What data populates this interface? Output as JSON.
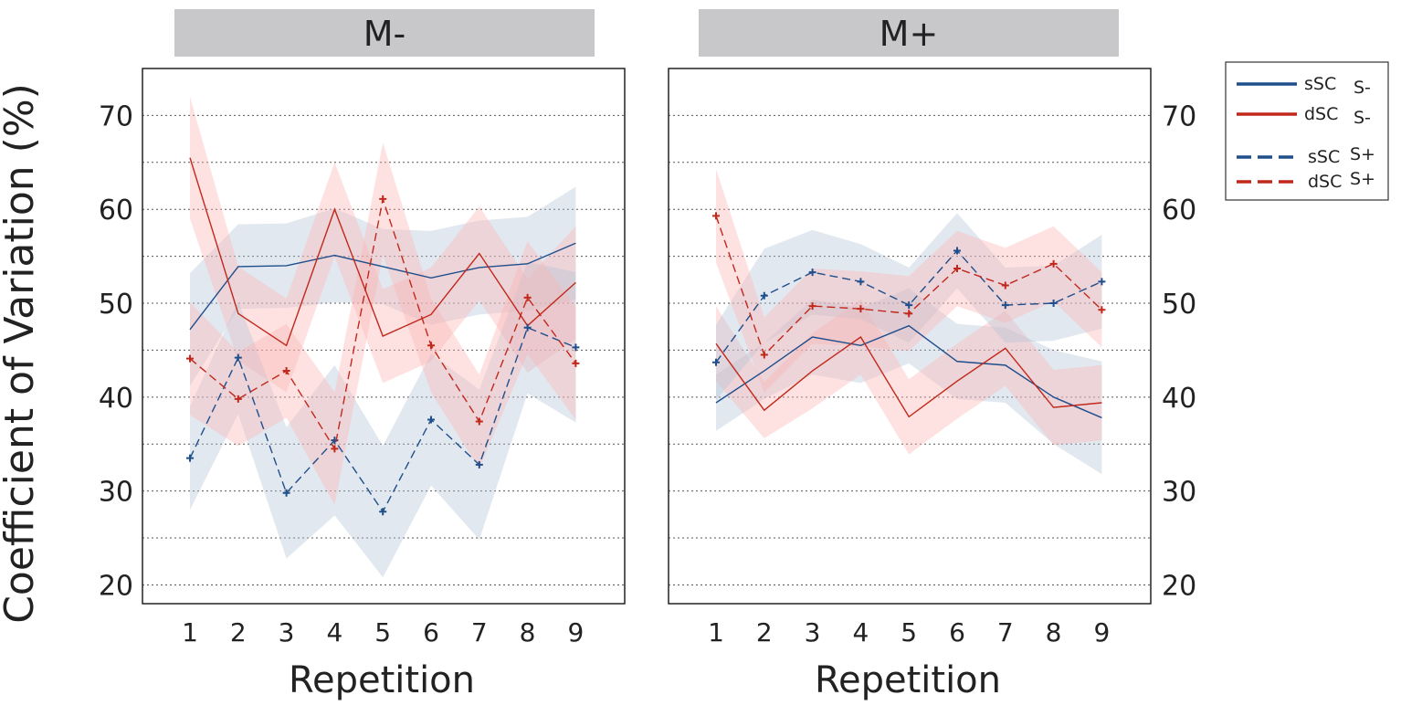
{
  "chart_data": {
    "type": "line",
    "ylabel": "Coefficient of Variation (%)",
    "xlabel": "Repetition",
    "x": [
      1,
      2,
      3,
      4,
      5,
      6,
      7,
      8,
      9
    ],
    "ylim": [
      18,
      75
    ],
    "yticks": [
      20,
      30,
      40,
      50,
      60,
      70
    ],
    "grid": true,
    "colors": {
      "blue": "#1f4e8c",
      "red": "#c0281b",
      "blue_band": "#b4c3d6",
      "red_band": "#fcb4b4",
      "title_bar": "#c8c8cb"
    },
    "legend": {
      "position": "right",
      "entries": [
        {
          "name": "sSC",
          "cond": "S-",
          "color": "#1f4e8c",
          "dash": false
        },
        {
          "name": "dSC",
          "cond": "S-",
          "color": "#c0281b",
          "dash": false
        },
        {
          "name": "sSC",
          "cond": "S+",
          "color": "#1f4e8c",
          "dash": true
        },
        {
          "name": "dSC",
          "cond": "S+",
          "color": "#c0281b",
          "dash": true
        }
      ]
    },
    "panels": [
      {
        "title": "M-",
        "series": [
          {
            "name": "sSC S-",
            "color": "#1f4e8c",
            "dashed": false,
            "markers": false,
            "values": [
              47.2,
              53.9,
              54.0,
              55.1,
              53.9,
              52.7,
              53.8,
              54.2,
              56.4
            ],
            "band": [
              6,
              4.5,
              4.5,
              5,
              4,
              5,
              5,
              5,
              6
            ]
          },
          {
            "name": "dSC S-",
            "color": "#c0281b",
            "dashed": false,
            "markers": false,
            "values": [
              65.5,
              48.9,
              45.5,
              60.0,
              46.5,
              48.8,
              55.3,
              47.6,
              52.2
            ],
            "band": [
              6.5,
              5,
              5,
              5,
              5,
              5,
              5,
              5,
              6
            ]
          },
          {
            "name": "sSC S+",
            "color": "#1f4e8c",
            "dashed": true,
            "markers": true,
            "values": [
              33.5,
              44.2,
              29.8,
              35.4,
              27.8,
              37.6,
              32.8,
              47.4,
              45.3
            ],
            "band": [
              5.5,
              6,
              7,
              8,
              7,
              7,
              8,
              7,
              8
            ]
          },
          {
            "name": "dSC S+",
            "color": "#c0281b",
            "dashed": true,
            "markers": true,
            "values": [
              44.1,
              39.8,
              42.8,
              34.5,
              61.1,
              45.5,
              37.4,
              50.6,
              43.6
            ],
            "band": [
              6,
              5,
              5,
              6,
              6,
              5,
              5,
              6,
              6
            ]
          }
        ]
      },
      {
        "title": "M+",
        "series": [
          {
            "name": "sSC S-",
            "color": "#1f4e8c",
            "dashed": false,
            "markers": false,
            "values": [
              39.4,
              42.8,
              46.4,
              45.5,
              47.6,
              43.8,
              43.4,
              40.0,
              37.8
            ],
            "band": [
              3,
              3,
              4,
              4,
              4,
              4,
              4,
              5,
              6
            ]
          },
          {
            "name": "dSC S-",
            "color": "#c0281b",
            "dashed": false,
            "markers": false,
            "values": [
              45.7,
              38.6,
              42.8,
              46.4,
              37.9,
              41.7,
              45.2,
              38.9,
              39.4
            ],
            "band": [
              4,
              3,
              4,
              4,
              4,
              4,
              4,
              4,
              4
            ]
          },
          {
            "name": "sSC S+",
            "color": "#1f4e8c",
            "dashed": true,
            "markers": true,
            "values": [
              43.7,
              50.8,
              53.3,
              52.3,
              49.8,
              55.6,
              49.8,
              50.0,
              52.3
            ],
            "band": [
              4,
              5,
              4.5,
              4,
              4,
              4,
              4,
              4,
              5
            ]
          },
          {
            "name": "dSC S+",
            "color": "#c0281b",
            "dashed": true,
            "markers": true,
            "values": [
              59.3,
              44.5,
              49.7,
              49.4,
              48.9,
              53.7,
              51.9,
              54.2,
              49.3
            ],
            "band": [
              5,
              4,
              4,
              4,
              4,
              4,
              4,
              4,
              4
            ]
          }
        ]
      }
    ]
  }
}
